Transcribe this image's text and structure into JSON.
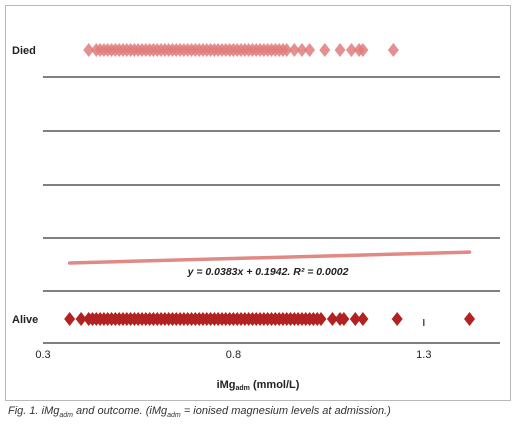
{
  "chart_data": {
    "type": "scatter",
    "categories": [
      "Died",
      "Alive"
    ],
    "xlabel": "iMg",
    "xlabel_sub": "adm",
    "xlabel_unit": " (mmol/L)",
    "xlim": [
      0.3,
      1.5
    ],
    "xticks": [
      "0.3",
      "0.8",
      "1.3"
    ],
    "xtick_values": [
      0.3,
      0.8,
      1.3
    ],
    "grid": "horizontal lines",
    "marker": "diamond",
    "marker_color": "#b22222",
    "died_marker_color": "#e07c7c",
    "trendline_color": "#e08a85",
    "series": [
      {
        "name": "Died",
        "y": 1,
        "x": [
          0.42,
          0.44,
          0.45,
          0.46,
          0.47,
          0.48,
          0.49,
          0.5,
          0.51,
          0.52,
          0.53,
          0.54,
          0.55,
          0.56,
          0.57,
          0.58,
          0.59,
          0.6,
          0.61,
          0.62,
          0.63,
          0.64,
          0.65,
          0.66,
          0.67,
          0.68,
          0.69,
          0.7,
          0.71,
          0.72,
          0.73,
          0.74,
          0.75,
          0.76,
          0.77,
          0.78,
          0.79,
          0.8,
          0.81,
          0.82,
          0.83,
          0.84,
          0.85,
          0.86,
          0.87,
          0.88,
          0.89,
          0.9,
          0.91,
          0.92,
          0.93,
          0.94,
          0.96,
          0.98,
          1.0,
          1.04,
          1.08,
          1.11,
          1.13,
          1.14,
          1.22
        ]
      },
      {
        "name": "Alive",
        "y": 0,
        "x": [
          0.37,
          0.4,
          0.42,
          0.43,
          0.44,
          0.45,
          0.46,
          0.47,
          0.48,
          0.49,
          0.5,
          0.51,
          0.52,
          0.53,
          0.54,
          0.55,
          0.56,
          0.57,
          0.58,
          0.59,
          0.6,
          0.61,
          0.62,
          0.63,
          0.64,
          0.65,
          0.66,
          0.67,
          0.68,
          0.69,
          0.7,
          0.71,
          0.72,
          0.73,
          0.74,
          0.75,
          0.76,
          0.77,
          0.78,
          0.79,
          0.8,
          0.81,
          0.82,
          0.83,
          0.84,
          0.85,
          0.86,
          0.87,
          0.88,
          0.89,
          0.9,
          0.91,
          0.92,
          0.93,
          0.94,
          0.95,
          0.96,
          0.97,
          0.98,
          0.99,
          1.0,
          1.01,
          1.02,
          1.03,
          1.06,
          1.08,
          1.09,
          1.12,
          1.14,
          1.23,
          1.42
        ]
      }
    ],
    "trendline": {
      "slope": 0.0383,
      "intercept": 0.1942,
      "x_range": [
        0.37,
        1.42
      ],
      "equation": "y = 0.0383x + 0.1942. R² = 0.0002"
    }
  },
  "caption": {
    "part1": "Fig. 1. iMg",
    "sub1": "adm",
    "part2": " and outcome. (iMg",
    "sub2": "adm",
    "part3": " = ionised magnesium levels at admission.)"
  }
}
